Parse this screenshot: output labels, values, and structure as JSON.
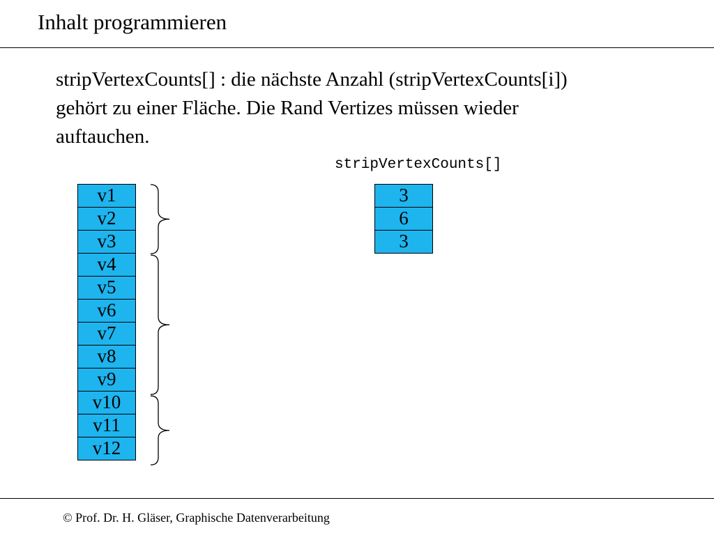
{
  "slide": {
    "title": "Inhalt programmieren",
    "body_lines": [
      "stripVertexCounts[] :  die nächste Anzahl (stripVertexCounts[i])",
      "gehört zu einer Fläche. Die Rand Vertizes müssen wieder",
      "auftauchen."
    ],
    "array_caption": "stripVertexCounts[]",
    "footer": "© Prof. Dr. H. Gläser, Graphische Datenverarbeitung"
  },
  "colors": {
    "cell_fill": "#1eb4ee",
    "line": "#000000"
  },
  "vertices": [
    "v1",
    "v2",
    "v3",
    "v4",
    "v5",
    "v6",
    "v7",
    "v8",
    "v9",
    "v10",
    "v11",
    "v12"
  ],
  "strip_vertex_counts": [
    "3",
    "6",
    "3"
  ],
  "groups": [
    {
      "start": 1,
      "count": 3
    },
    {
      "start": 4,
      "count": 6
    },
    {
      "start": 10,
      "count": 3
    }
  ]
}
